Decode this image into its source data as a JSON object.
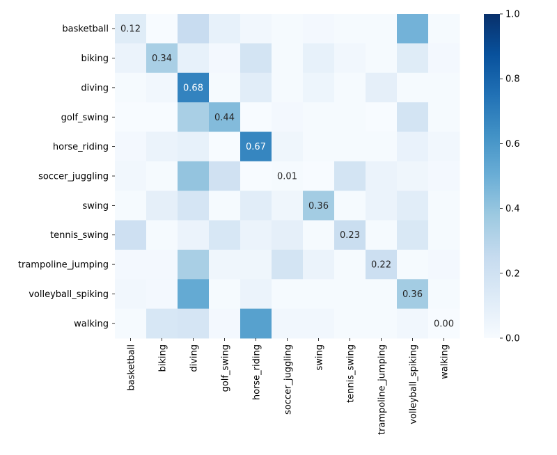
{
  "chart_data": {
    "type": "heatmap",
    "title": "",
    "xlabel": "",
    "ylabel": "",
    "colormap": "Blues",
    "colorbar": {
      "range": [
        0.0,
        1.0
      ],
      "ticks": [
        0.0,
        0.2,
        0.4,
        0.6,
        0.8,
        1.0
      ],
      "tick_labels": [
        "0.0",
        "0.2",
        "0.4",
        "0.6",
        "0.8",
        "1.0"
      ]
    },
    "rows": [
      "basketball",
      "biking",
      "diving",
      "golf_swing",
      "horse_riding",
      "soccer_juggling",
      "swing",
      "tennis_swing",
      "trampoline_jumping",
      "volleyball_spiking",
      "walking"
    ],
    "columns": [
      "basketball",
      "biking",
      "diving",
      "golf_swing",
      "horse_riding",
      "soccer_juggling",
      "swing",
      "tennis_swing",
      "trampoline_jumping",
      "volleyball_spiking",
      "walking"
    ],
    "values": [
      [
        0.12,
        0.0,
        0.24,
        0.08,
        0.03,
        0.01,
        0.02,
        0.01,
        0.01,
        0.48,
        0.01
      ],
      [
        0.06,
        0.34,
        0.08,
        0.02,
        0.18,
        0.01,
        0.08,
        0.03,
        0.01,
        0.12,
        0.02
      ],
      [
        0.01,
        0.03,
        0.68,
        0.01,
        0.11,
        0.01,
        0.05,
        0.01,
        0.09,
        0.01,
        0.01
      ],
      [
        0.0,
        0.0,
        0.34,
        0.44,
        0.0,
        0.02,
        0.01,
        0.01,
        0.0,
        0.18,
        0.01
      ],
      [
        0.02,
        0.06,
        0.08,
        0.0,
        0.67,
        0.04,
        0.01,
        0.01,
        0.01,
        0.07,
        0.03
      ],
      [
        0.03,
        0.01,
        0.4,
        0.2,
        0.0,
        0.01,
        0.0,
        0.18,
        0.06,
        0.04,
        0.02
      ],
      [
        0.01,
        0.09,
        0.17,
        0.01,
        0.11,
        0.04,
        0.36,
        0.01,
        0.06,
        0.11,
        0.01
      ],
      [
        0.21,
        0.01,
        0.06,
        0.16,
        0.06,
        0.09,
        0.01,
        0.23,
        0.01,
        0.15,
        0.01
      ],
      [
        0.02,
        0.02,
        0.34,
        0.04,
        0.04,
        0.18,
        0.06,
        0.01,
        0.22,
        0.01,
        0.02
      ],
      [
        0.03,
        0.02,
        0.52,
        0.01,
        0.06,
        0.01,
        0.01,
        0.01,
        0.01,
        0.36,
        0.01
      ],
      [
        0.01,
        0.16,
        0.17,
        0.02,
        0.56,
        0.03,
        0.03,
        0.01,
        0.01,
        0.03,
        0.0
      ]
    ],
    "annotations": [
      {
        "row": 0,
        "col": 0,
        "text": "0.12"
      },
      {
        "row": 1,
        "col": 1,
        "text": "0.34"
      },
      {
        "row": 2,
        "col": 2,
        "text": "0.68"
      },
      {
        "row": 3,
        "col": 3,
        "text": "0.44"
      },
      {
        "row": 4,
        "col": 4,
        "text": "0.67"
      },
      {
        "row": 5,
        "col": 5,
        "text": "0.01"
      },
      {
        "row": 6,
        "col": 6,
        "text": "0.36"
      },
      {
        "row": 7,
        "col": 7,
        "text": "0.23"
      },
      {
        "row": 8,
        "col": 8,
        "text": "0.22"
      },
      {
        "row": 9,
        "col": 9,
        "text": "0.36"
      },
      {
        "row": 10,
        "col": 10,
        "text": "0.00"
      }
    ]
  }
}
